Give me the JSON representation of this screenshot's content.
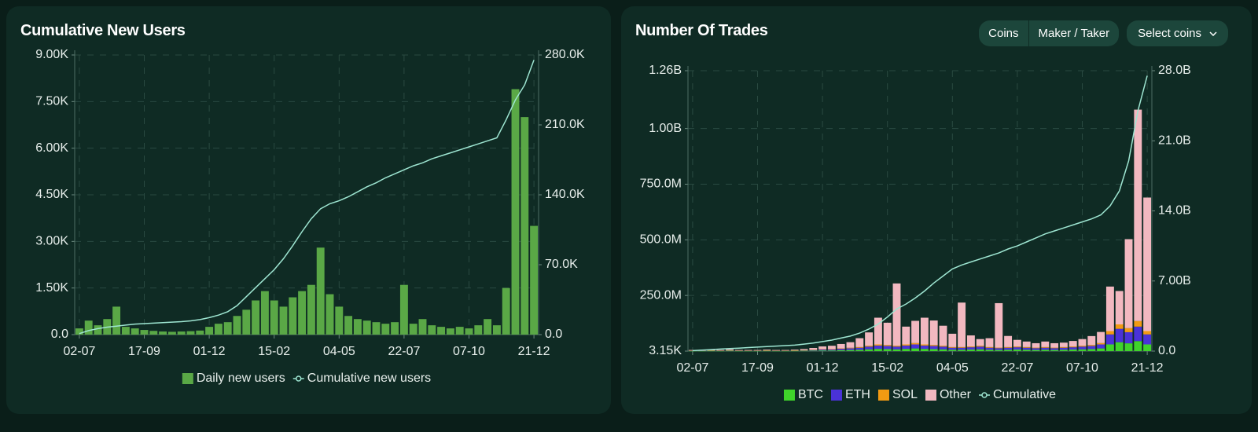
{
  "controls": [
    "Coins",
    "Maker / Taker",
    "Select coins"
  ],
  "chart_data": [
    {
      "type": "bar",
      "title": "Cumulative New Users",
      "grid": true,
      "legend": "bottom",
      "categories": [
        "02-07",
        null,
        null,
        null,
        null,
        null,
        null,
        "17-09",
        null,
        null,
        null,
        null,
        null,
        null,
        "01-12",
        null,
        null,
        null,
        null,
        null,
        null,
        "15-02",
        null,
        null,
        null,
        null,
        null,
        null,
        "04-05",
        null,
        null,
        null,
        null,
        null,
        null,
        "22-07",
        null,
        null,
        null,
        null,
        null,
        null,
        "07-10",
        null,
        null,
        null,
        null,
        null,
        null,
        "21-12"
      ],
      "ylim": [
        0,
        9000
      ],
      "yticks": [
        {
          "value": 0,
          "label": "0.0"
        },
        {
          "value": 1500,
          "label": "1.50K"
        },
        {
          "value": 3000,
          "label": "3.00K"
        },
        {
          "value": 4500,
          "label": "4.50K"
        },
        {
          "value": 6000,
          "label": "6.00K"
        },
        {
          "value": 7500,
          "label": "7.50K"
        },
        {
          "value": 9000,
          "label": "9.00K"
        }
      ],
      "y2lim": [
        0,
        280000
      ],
      "y2ticks": [
        {
          "value": 0,
          "label": "0.0"
        },
        {
          "value": 70000,
          "label": "70.0K"
        },
        {
          "value": 140000,
          "label": "140.0K"
        },
        {
          "value": 210000,
          "label": "210.0K"
        },
        {
          "value": 280000,
          "label": "280.0K"
        }
      ],
      "series": [
        {
          "name": "Daily new users",
          "color": "#5aa846",
          "type": "bar",
          "values": [
            200,
            450,
            300,
            500,
            900,
            250,
            200,
            150,
            120,
            100,
            90,
            100,
            110,
            130,
            250,
            350,
            400,
            600,
            800,
            1100,
            1400,
            1100,
            900,
            1200,
            1400,
            1600,
            2800,
            1300,
            900,
            600,
            500,
            450,
            400,
            350,
            400,
            1600,
            350,
            500,
            300,
            250,
            200,
            250,
            200,
            300,
            500,
            300,
            1500,
            7900,
            7000,
            3500
          ]
        },
        {
          "name": "Cumulative new users",
          "color": "#9ee6d2",
          "type": "line",
          "axis": "y2",
          "values": [
            1000,
            4000,
            6000,
            7500,
            8500,
            9500,
            10500,
            11000,
            11500,
            12000,
            12500,
            13000,
            13800,
            15000,
            17000,
            19500,
            23000,
            29000,
            38000,
            47000,
            56000,
            65000,
            76000,
            89000,
            103000,
            116000,
            126000,
            131000,
            134000,
            138000,
            143000,
            148000,
            152000,
            157000,
            161000,
            165000,
            169000,
            172000,
            176000,
            179000,
            182000,
            185000,
            188000,
            191000,
            194000,
            197000,
            215000,
            235000,
            250000,
            275000
          ]
        }
      ]
    },
    {
      "type": "bar",
      "title": "Number Of Trades",
      "grid": true,
      "legend": "bottom",
      "stacked": true,
      "categories": [
        "02-07",
        null,
        null,
        null,
        null,
        null,
        null,
        "17-09",
        null,
        null,
        null,
        null,
        null,
        null,
        "01-12",
        null,
        null,
        null,
        null,
        null,
        null,
        "15-02",
        null,
        null,
        null,
        null,
        null,
        null,
        "04-05",
        null,
        null,
        null,
        null,
        null,
        null,
        "22-07",
        null,
        null,
        null,
        null,
        null,
        null,
        "07-10",
        null,
        null,
        null,
        null,
        null,
        null,
        "21-12"
      ],
      "ylim": [
        3150,
        1260000000
      ],
      "yticks": [
        {
          "value": 3150,
          "label": "3.15K"
        },
        {
          "value": 250000000,
          "label": "250.0M"
        },
        {
          "value": 500000000,
          "label": "500.0M"
        },
        {
          "value": 750000000,
          "label": "750.0M"
        },
        {
          "value": 1000000000,
          "label": "1.00B"
        },
        {
          "value": 1260000000,
          "label": "1.26B"
        }
      ],
      "y2lim": [
        0,
        28000000000
      ],
      "y2ticks": [
        {
          "value": 0,
          "label": "0.0"
        },
        {
          "value": 7000000000,
          "label": "7.00B"
        },
        {
          "value": 14000000000,
          "label": "14.0B"
        },
        {
          "value": 21000000000,
          "label": "21.0B"
        },
        {
          "value": 28000000000,
          "label": "28.0B"
        }
      ],
      "series": [
        {
          "name": "BTC",
          "color": "#3fd42a",
          "type": "bar",
          "values": [
            1000000,
            1000000,
            1200000,
            1000000,
            1500000,
            1000000,
            1000000,
            1000000,
            1200000,
            1000000,
            1000000,
            1200000,
            1500000,
            2000000,
            3000000,
            3000000,
            4000000,
            5000000,
            6000000,
            8000000,
            10000000,
            9000000,
            8000000,
            10000000,
            12000000,
            10000000,
            9000000,
            8000000,
            6000000,
            6000000,
            7000000,
            8000000,
            6000000,
            5000000,
            6000000,
            7000000,
            6000000,
            5000000,
            6000000,
            5000000,
            6000000,
            7000000,
            8000000,
            9000000,
            12000000,
            30000000,
            40000000,
            35000000,
            45000000,
            30000000
          ]
        },
        {
          "name": "ETH",
          "color": "#4a32d8",
          "type": "bar",
          "values": [
            1500000,
            1500000,
            1800000,
            1500000,
            2000000,
            1500000,
            1500000,
            1500000,
            1800000,
            1500000,
            1500000,
            1800000,
            2200000,
            3000000,
            4500000,
            4500000,
            6000000,
            7500000,
            9000000,
            12000000,
            15000000,
            14000000,
            12000000,
            15000000,
            18000000,
            15000000,
            14000000,
            12000000,
            9000000,
            9000000,
            10000000,
            12000000,
            9000000,
            8000000,
            9000000,
            10000000,
            9000000,
            8000000,
            9000000,
            8000000,
            9000000,
            10000000,
            12000000,
            14000000,
            18000000,
            45000000,
            60000000,
            50000000,
            65000000,
            45000000
          ]
        },
        {
          "name": "SOL",
          "color": "#f29a12",
          "type": "bar",
          "values": [
            500000,
            500000,
            600000,
            500000,
            700000,
            500000,
            500000,
            500000,
            600000,
            500000,
            500000,
            600000,
            700000,
            1000000,
            1500000,
            1500000,
            2000000,
            2500000,
            3000000,
            4000000,
            5000000,
            4500000,
            4000000,
            5000000,
            6000000,
            5000000,
            4500000,
            4000000,
            3000000,
            3000000,
            3500000,
            4000000,
            3000000,
            2500000,
            3000000,
            3500000,
            3000000,
            2500000,
            3000000,
            2500000,
            3000000,
            3500000,
            4000000,
            4500000,
            6000000,
            15000000,
            20000000,
            18000000,
            25000000,
            15000000
          ]
        },
        {
          "name": "Other",
          "color": "#f2b8c0",
          "type": "bar",
          "values": [
            2000000,
            2000000,
            3000000,
            2000000,
            4000000,
            2000000,
            2000000,
            2000000,
            3000000,
            2000000,
            2000000,
            3000000,
            5000000,
            8000000,
            12000000,
            15000000,
            20000000,
            25000000,
            40000000,
            60000000,
            120000000,
            100000000,
            280000000,
            80000000,
            100000000,
            120000000,
            110000000,
            90000000,
            60000000,
            200000000,
            50000000,
            30000000,
            40000000,
            200000000,
            50000000,
            30000000,
            25000000,
            20000000,
            25000000,
            20000000,
            20000000,
            25000000,
            30000000,
            40000000,
            50000000,
            200000000,
            150000000,
            400000000,
            950000000,
            600000000
          ]
        },
        {
          "name": "Cumulative",
          "color": "#9ee6d2",
          "type": "line",
          "axis": "y2",
          "values": [
            50000000,
            100000000,
            150000000,
            200000000,
            260000000,
            300000000,
            350000000,
            400000000,
            450000000,
            500000000,
            550000000,
            600000000,
            700000000,
            800000000,
            950000000,
            1100000000,
            1300000000,
            1500000000,
            1800000000,
            2200000000,
            2700000000,
            3400000000,
            4200000000,
            4700000000,
            5300000000,
            6000000000,
            6800000000,
            7500000000,
            8200000000,
            8600000000,
            8900000000,
            9200000000,
            9500000000,
            9800000000,
            10200000000,
            10500000000,
            10900000000,
            11300000000,
            11700000000,
            12000000000,
            12300000000,
            12600000000,
            12900000000,
            13200000000,
            13600000000,
            14500000000,
            16000000000,
            19000000000,
            24000000000,
            27500000000
          ]
        }
      ]
    }
  ]
}
